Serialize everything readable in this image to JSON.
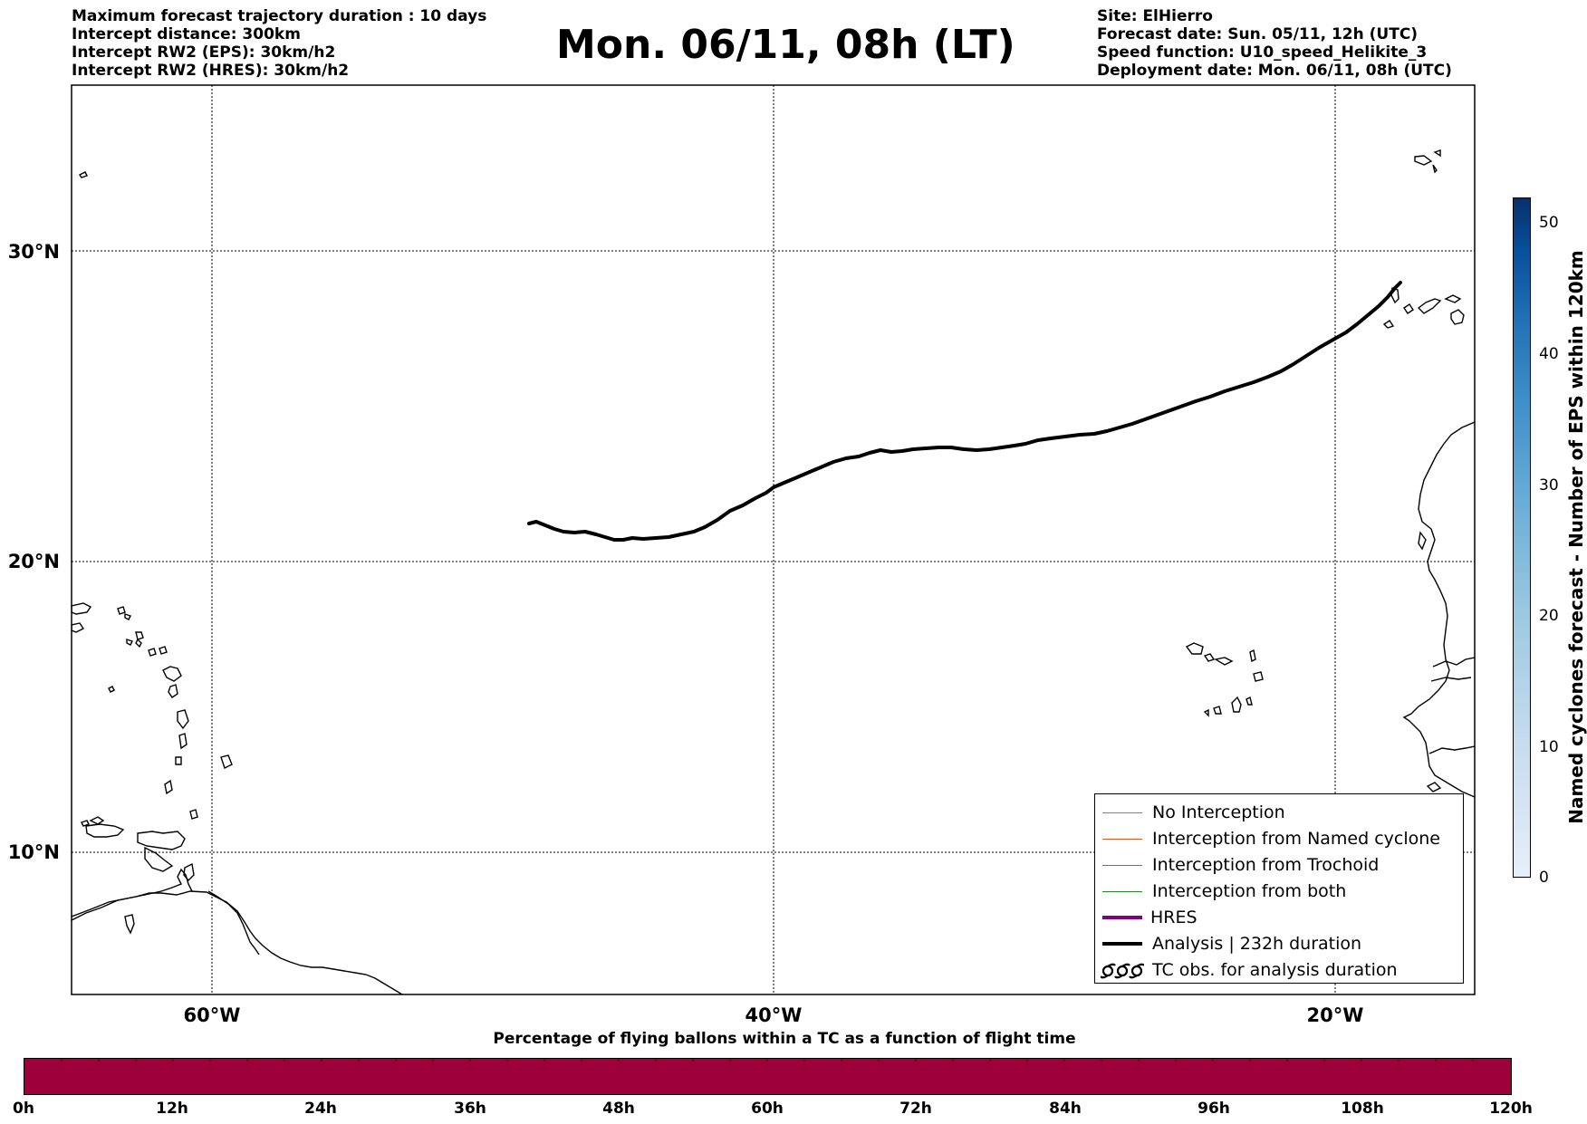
{
  "header_left": [
    "Maximum forecast trajectory duration : 10 days",
    "Intercept distance: 300km",
    "Intercept RW2 (EPS):  30km/h2",
    "Intercept RW2 (HRES): 30km/h2"
  ],
  "title": "Mon. 06/11, 08h (LT)",
  "header_right": [
    "Site: ElHierro",
    "Forecast date: Sun. 05/11, 12h (UTC)",
    "Speed function: U10_speed_Helikite_3",
    "Deployment date: Mon. 06/11, 08h (UTC)"
  ],
  "map": {
    "lat_labels": [
      "30°N",
      "20°N",
      "10°N"
    ],
    "lon_labels": [
      "60°W",
      "40°W",
      "20°W"
    ],
    "trajectory_color": "#000000"
  },
  "legend": [
    {
      "label": "No Interception",
      "color": "#808080",
      "width": 1.2,
      "icon": "line"
    },
    {
      "label": "Interception from Named cyclone",
      "color": "#e8541e",
      "width": 1.2,
      "icon": "line"
    },
    {
      "label": "Interception from Trochoid",
      "color": "#808000",
      "width": 1.2,
      "icon": "line"
    },
    {
      "label": "Interception from both",
      "color": "#228b22",
      "width": 1.2,
      "icon": "line"
    },
    {
      "label": "HRES",
      "color": "#800080",
      "width": 4,
      "icon": "line"
    },
    {
      "label": "Analysis | 232h duration",
      "color": "#000000",
      "width": 4,
      "icon": "line"
    },
    {
      "label": "TC obs. for analysis duration",
      "color": "#000000",
      "width": 0,
      "icon": "cyclone-symbols-icon"
    }
  ],
  "colorbar_vertical": {
    "label": "Named cyclones forecast - Number of EPS within 120km",
    "ticks": [
      "0",
      "10",
      "20",
      "30",
      "40",
      "50"
    ],
    "color_low": "#e6eff9",
    "color_high": "#08306b"
  },
  "colorbar_horizontal": {
    "title": "Percentage of flying ballons within a TC as a function of flight time",
    "ticks": [
      "0h",
      "12h",
      "24h",
      "36h",
      "48h",
      "60h",
      "72h",
      "84h",
      "96h",
      "108h",
      "120h"
    ],
    "fill_color": "#9e003a"
  }
}
